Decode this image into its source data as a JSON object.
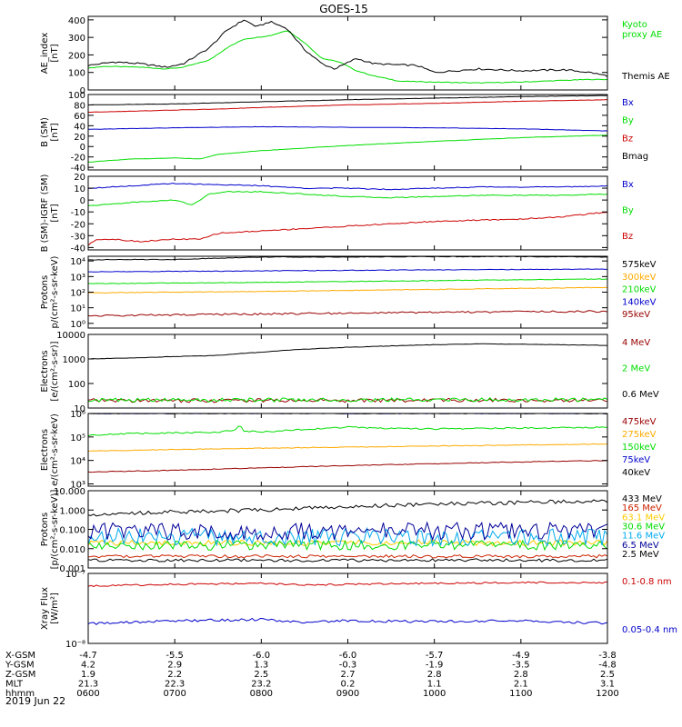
{
  "figure_title": "GOES-15",
  "date_label": "2019 Jun 22",
  "chart_data": [
    {
      "type": "line",
      "ylabel": "AE_index\n[nT]",
      "ylim": [
        0,
        420
      ],
      "yticks": [
        0,
        100,
        200,
        300,
        400
      ],
      "ytick_labels": [
        "0",
        "100",
        "200",
        "300",
        "400"
      ],
      "yscale": "linear",
      "series": [
        {
          "name": "Kyoto\nproxy AE",
          "color": "#00dd00",
          "noise": 2,
          "x": [
            6.0,
            6.2,
            6.6,
            6.9,
            7.1,
            7.4,
            7.6,
            7.8,
            7.95,
            8.1,
            8.3,
            8.5,
            8.7,
            8.9,
            9.1,
            9.3,
            9.6,
            10.0,
            10.5,
            11.0,
            11.5,
            11.8,
            12.0
          ],
          "y": [
            125,
            135,
            130,
            120,
            130,
            170,
            240,
            290,
            300,
            310,
            340,
            270,
            180,
            160,
            110,
            80,
            50,
            45,
            40,
            45,
            55,
            60,
            60
          ]
        },
        {
          "name": "Themis AE",
          "color": "#000000",
          "noise": 5,
          "x": [
            6.0,
            6.3,
            6.6,
            6.9,
            7.1,
            7.4,
            7.6,
            7.8,
            7.95,
            8.1,
            8.3,
            8.5,
            8.7,
            8.85,
            9.1,
            9.3,
            9.5,
            9.8,
            10.0,
            10.5,
            11.0,
            11.5,
            11.8,
            12.0
          ],
          "y": [
            140,
            160,
            150,
            130,
            150,
            240,
            340,
            400,
            360,
            390,
            350,
            230,
            150,
            120,
            180,
            150,
            145,
            140,
            100,
            120,
            110,
            115,
            100,
            80
          ]
        }
      ]
    },
    {
      "type": "line",
      "ylabel": "B (SM)\n[nT]",
      "ylim": [
        -45,
        100
      ],
      "yticks": [
        -40,
        -20,
        0,
        20,
        40,
        60,
        80,
        100
      ],
      "ytick_labels": [
        "-40",
        "-20",
        "0",
        "20",
        "40",
        "60",
        "80",
        "100"
      ],
      "yscale": "linear",
      "series": [
        {
          "name": "Bx",
          "color": "#0000cc",
          "noise": 0.3,
          "x": [
            6.0,
            7.0,
            8.0,
            9.0,
            10.0,
            11.0,
            12.0
          ],
          "y": [
            33,
            36,
            38,
            37,
            36,
            34,
            30
          ]
        },
        {
          "name": "By",
          "color": "#00dd00",
          "noise": 0.3,
          "x": [
            6.0,
            6.5,
            7.0,
            7.3,
            7.5,
            8.0,
            9.0,
            10.0,
            11.0,
            12.0
          ],
          "y": [
            -30,
            -24,
            -22,
            -24,
            -15,
            -8,
            2,
            10,
            17,
            22
          ]
        },
        {
          "name": "Bz",
          "color": "#cc0000",
          "noise": 0.3,
          "x": [
            6.0,
            6.5,
            7.0,
            7.5,
            8.0,
            9.0,
            10.0,
            11.0,
            12.0
          ],
          "y": [
            66,
            68,
            70,
            72,
            75,
            80,
            83,
            87,
            90
          ]
        },
        {
          "name": "Bmag",
          "color": "#000000",
          "noise": 0.3,
          "x": [
            6.0,
            7.0,
            8.0,
            9.0,
            10.0,
            11.0,
            12.0
          ],
          "y": [
            80,
            82,
            86,
            90,
            93,
            96,
            98
          ]
        }
      ]
    },
    {
      "type": "line",
      "ylabel": "B (SM)-IGRF (SM)\n[nT]",
      "ylim": [
        -42,
        20
      ],
      "yticks": [
        -40,
        -30,
        -20,
        -10,
        0,
        10,
        20
      ],
      "ytick_labels": [
        "-40",
        "-30",
        "-20",
        "-10",
        "0",
        "10",
        "20"
      ],
      "yscale": "linear",
      "series": [
        {
          "name": "Bx",
          "color": "#0000cc",
          "noise": 0.4,
          "x": [
            6.0,
            6.5,
            7.0,
            7.5,
            8.0,
            8.5,
            9.0,
            9.5,
            10.0,
            10.5,
            11.0,
            11.5,
            12.0
          ],
          "y": [
            10,
            12,
            14,
            13,
            12,
            10,
            10,
            9,
            10,
            11,
            11,
            11,
            12
          ]
        },
        {
          "name": "By",
          "color": "#00dd00",
          "noise": 0.4,
          "x": [
            6.0,
            6.5,
            7.0,
            7.2,
            7.4,
            7.6,
            8.0,
            8.5,
            9.0,
            9.5,
            10.0,
            10.5,
            11.0,
            11.5,
            12.0
          ],
          "y": [
            -5,
            -2,
            0,
            -4,
            5,
            7,
            7,
            5,
            3,
            2,
            3,
            4,
            4,
            4,
            5
          ]
        },
        {
          "name": "Bz",
          "color": "#cc0000",
          "noise": 0.5,
          "x": [
            6.0,
            6.1,
            6.3,
            6.6,
            7.0,
            7.3,
            7.5,
            8.0,
            8.5,
            9.0,
            9.5,
            10.0,
            10.5,
            11.0,
            11.5,
            12.0
          ],
          "y": [
            -38,
            -33,
            -33,
            -35,
            -33,
            -33,
            -28,
            -26,
            -24,
            -22,
            -20,
            -18,
            -17,
            -16,
            -14,
            -10
          ]
        }
      ]
    },
    {
      "type": "line",
      "ylabel": "Protons\np/(cm²-s-sr-keV)",
      "ylim": [
        0.5,
        20000
      ],
      "yticks": [
        1,
        10,
        100,
        1000,
        10000
      ],
      "ytick_labels": [
        "10⁰",
        "10¹",
        "10²",
        "10³",
        "10⁴"
      ],
      "yscale": "log",
      "series": [
        {
          "name": "575keV",
          "color": "#000000",
          "noise": 0.02,
          "x": [
            6.0,
            7.0,
            7.5,
            8.0,
            9.0,
            10.0,
            11.0,
            12.0
          ],
          "y": [
            12000,
            12500,
            15000,
            18000,
            18000,
            19000,
            19000,
            18000
          ]
        },
        {
          "name": "300keV",
          "color": "#ffaa00",
          "noise": 0.02,
          "x": [
            6.0,
            8.0,
            10.0,
            12.0
          ],
          "y": [
            90,
            110,
            150,
            200
          ]
        },
        {
          "name": "210keV",
          "color": "#00dd00",
          "noise": 0.02,
          "x": [
            6.0,
            8.0,
            10.0,
            12.0
          ],
          "y": [
            350,
            420,
            550,
            700
          ]
        },
        {
          "name": "140keV",
          "color": "#0000cc",
          "noise": 0.02,
          "x": [
            6.0,
            8.0,
            10.0,
            12.0
          ],
          "y": [
            2000,
            2300,
            2700,
            3000
          ]
        },
        {
          "name": "95keV",
          "color": "#990000",
          "noise": 0.06,
          "x": [
            6.0,
            8.0,
            10.0,
            12.0
          ],
          "y": [
            3,
            4,
            5,
            6
          ]
        }
      ]
    },
    {
      "type": "line",
      "ylabel": "Electrons\n[e/(cm²-s-sr)]",
      "ylim": [
        10,
        10000
      ],
      "yticks": [
        10,
        100,
        1000,
        10000
      ],
      "ytick_labels": [
        "10",
        "100",
        "1000",
        "10000"
      ],
      "yscale": "log",
      "series": [
        {
          "name": "4 MeV",
          "color": "#990000",
          "noise": 0.08,
          "x": [
            6.0,
            12.0
          ],
          "y": [
            20,
            21
          ]
        },
        {
          "name": "2 MeV",
          "color": "#00dd00",
          "noise": 0.08,
          "x": [
            6.0,
            12.0
          ],
          "y": [
            21,
            22
          ]
        },
        {
          "name": "0.6 MeV",
          "color": "#000000",
          "noise": 0.01,
          "x": [
            6.0,
            6.5,
            7.0,
            7.5,
            8.0,
            8.5,
            9.0,
            9.5,
            10.0,
            10.5,
            11.0,
            11.5,
            12.0
          ],
          "y": [
            1000,
            1100,
            1250,
            1400,
            1900,
            2500,
            3000,
            3400,
            3800,
            4100,
            4000,
            3800,
            3600
          ]
        }
      ]
    },
    {
      "type": "line",
      "ylabel": "Electrons\ne/(cm²-s-sr-keV)",
      "ylim": [
        800,
        1000000
      ],
      "yticks": [
        1000,
        10000,
        100000,
        1000000
      ],
      "ytick_labels": [
        "10³",
        "10⁴",
        "10⁵",
        "10⁶"
      ],
      "yscale": "log",
      "series": [
        {
          "name": "475keV",
          "color": "#990000",
          "noise": 0.015,
          "x": [
            6.0,
            7.0,
            8.0,
            9.0,
            10.0,
            11.0,
            12.0
          ],
          "y": [
            3200,
            3800,
            4800,
            6000,
            7200,
            8600,
            10000
          ]
        },
        {
          "name": "275keV",
          "color": "#ffaa00",
          "noise": 0.015,
          "x": [
            6.0,
            7.0,
            8.0,
            9.0,
            10.0,
            11.0,
            12.0
          ],
          "y": [
            25000,
            29000,
            33000,
            37000,
            41000,
            45000,
            50000
          ]
        },
        {
          "name": "150keV",
          "color": "#00dd00",
          "noise": 0.03,
          "x": [
            6.0,
            6.5,
            7.0,
            7.5,
            7.7,
            7.75,
            7.8,
            8.0,
            8.5,
            9.0,
            9.5,
            10.0,
            10.5,
            11.0,
            11.5,
            12.0
          ],
          "y": [
            120000,
            140000,
            150000,
            160000,
            200000,
            320000,
            180000,
            160000,
            210000,
            260000,
            230000,
            220000,
            230000,
            240000,
            250000,
            260000
          ]
        },
        {
          "name": "75keV",
          "color": "#0000cc",
          "noise": 0.015,
          "x": [
            6.0,
            12.0
          ],
          "y": [
            1000000,
            1000000
          ]
        },
        {
          "name": "40keV",
          "color": "#000000",
          "noise": 0.015,
          "x": [
            6.0,
            12.0
          ],
          "y": [
            1000000,
            1000000
          ]
        }
      ]
    },
    {
      "type": "line",
      "ylabel": "Protons\n[p/(cm²-s-sr-keV)]",
      "ylim": [
        0.001,
        10
      ],
      "yticks": [
        0.001,
        0.01,
        0.1,
        1,
        10
      ],
      "ytick_labels": [
        "0.001",
        "0.010",
        "0.100",
        "1.000",
        "10.000"
      ],
      "yscale": "log",
      "series": [
        {
          "name": "433 MeV",
          "color": "#000000",
          "noise": 0.1,
          "x": [
            6.0,
            7.0,
            8.0,
            9.0,
            10.0,
            11.0,
            12.0
          ],
          "y": [
            0.6,
            0.8,
            1.0,
            1.5,
            2.0,
            2.5,
            3.0
          ]
        },
        {
          "name": "165 MeV",
          "color": "#cc2200",
          "noise": 0.08,
          "x": [
            6.0,
            12.0
          ],
          "y": [
            0.004,
            0.004
          ]
        },
        {
          "name": "63.1 MeV",
          "color": "#ffcc00",
          "noise": 0.15,
          "x": [
            6.0,
            12.0
          ],
          "y": [
            0.02,
            0.02
          ]
        },
        {
          "name": "30.6 MeV",
          "color": "#00dd00",
          "noise": 0.25,
          "x": [
            6.0,
            12.0
          ],
          "y": [
            0.015,
            0.015
          ]
        },
        {
          "name": "11.6 MeV",
          "color": "#00aaee",
          "noise": 0.45,
          "x": [
            6.0,
            12.0
          ],
          "y": [
            0.04,
            0.04
          ]
        },
        {
          "name": "6.5 MeV",
          "color": "#000099",
          "noise": 0.45,
          "x": [
            6.0,
            12.0
          ],
          "y": [
            0.08,
            0.08
          ]
        },
        {
          "name": "2.5 MeV",
          "color": "#000000",
          "noise": 0.08,
          "x": [
            6.0,
            12.0
          ],
          "y": [
            0.0025,
            0.0025
          ]
        }
      ]
    },
    {
      "type": "line",
      "ylabel": "Xray Flux\n[W/m²]",
      "ylim": [
        1e-08,
        1e-07
      ],
      "yticks": [
        1e-08,
        1e-07
      ],
      "ytick_labels": [
        "10⁻⁸",
        "10⁻⁷"
      ],
      "yscale": "log",
      "series": [
        {
          "name": "0.1-0.8 nm",
          "color": "#cc0000",
          "noise": 0.012,
          "x": [
            6.0,
            7.0,
            8.0,
            8.5,
            9.0,
            10.0,
            11.0,
            12.0
          ],
          "y": [
            6.6e-08,
            7e-08,
            7.2e-08,
            6.8e-08,
            7e-08,
            7.2e-08,
            7.4e-08,
            7.4e-08
          ]
        },
        {
          "name": "0.05-0.4 nm",
          "color": "#0000cc",
          "noise": 0.018,
          "x": [
            6.0,
            7.0,
            8.0,
            8.5,
            9.0,
            10.0,
            11.0,
            12.0
          ],
          "y": [
            1.9e-08,
            2.1e-08,
            2.2e-08,
            2e-08,
            2.1e-08,
            2.05e-08,
            2.1e-08,
            1.95e-08
          ]
        }
      ]
    }
  ],
  "x_axis": {
    "xlim": [
      6.0,
      12.0
    ],
    "ticks": [
      6.0,
      7.0,
      8.0,
      9.0,
      10.0,
      11.0,
      12.0
    ],
    "rows": [
      {
        "label": "X-GSM",
        "values": [
          "-4.7",
          "-5.5",
          "-6.0",
          "-6.0",
          "-5.7",
          "-4.9",
          "-3.8"
        ]
      },
      {
        "label": "Y-GSM",
        "values": [
          "4.2",
          "2.9",
          "1.3",
          "-0.3",
          "-1.9",
          "-3.5",
          "-4.8"
        ]
      },
      {
        "label": "Z-GSM",
        "values": [
          "1.9",
          "2.2",
          "2.5",
          "2.7",
          "2.8",
          "2.8",
          "2.5"
        ]
      },
      {
        "label": "MLT",
        "values": [
          "21.3",
          "22.3",
          "23.2",
          "0.2",
          "1.1",
          "2.1",
          "3.1"
        ]
      },
      {
        "label": "hhmm",
        "values": [
          "0600",
          "0700",
          "0800",
          "0900",
          "1000",
          "1100",
          "1200"
        ]
      }
    ]
  }
}
